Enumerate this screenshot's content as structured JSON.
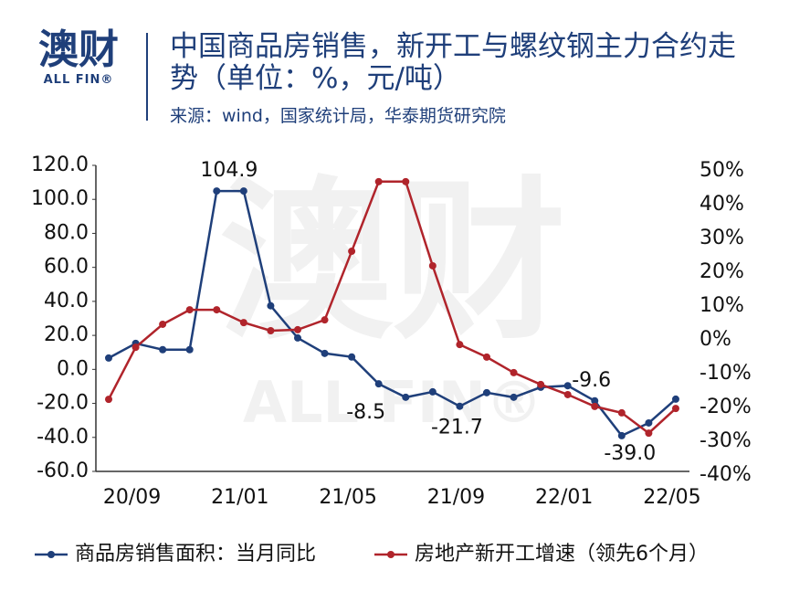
{
  "logo": {
    "name": "澳财",
    "sub": "ALL FIN®"
  },
  "header": {
    "title": "中国商品房销售，新开工与螺纹钢主力合约走势（单位：%，元/吨）",
    "source": "来源：wind，国家统计局，华泰期货研究院"
  },
  "chart_data": {
    "type": "line",
    "categories": [
      null,
      "20/09",
      null,
      null,
      null,
      "21/01",
      null,
      null,
      null,
      "21/05",
      null,
      null,
      null,
      "21/09",
      null,
      null,
      null,
      "22/01",
      null,
      null,
      null,
      "22/05"
    ],
    "series": [
      {
        "name": "商品房销售面积：当月同比",
        "color": "#1f3f7a",
        "values": [
          6.7,
          15.3,
          11.6,
          11.6,
          104.9,
          104.9,
          37.4,
          18.5,
          9.4,
          7.3,
          -8.5,
          -16.4,
          -13.2,
          -21.7,
          -13.7,
          -16.4,
          -10.5,
          -9.6,
          -18.5,
          -39.0,
          -31.5,
          -17.5
        ],
        "value_labels": [
          null,
          null,
          null,
          null,
          null,
          "104.9",
          null,
          null,
          null,
          null,
          "-8.5",
          null,
          null,
          "-21.7",
          null,
          null,
          null,
          "-9.6",
          null,
          "-39.0",
          null,
          null
        ]
      },
      {
        "name": "房地产新开工增速（领先6个月）",
        "color": "#b0242b",
        "axis": "y2",
        "values": [
          -17.6,
          -2.2,
          4.6,
          8.9,
          8.9,
          5.1,
          2.7,
          3.0,
          5.9,
          26.2,
          46.8,
          46.8,
          21.9,
          -1.4,
          -5.1,
          -9.7,
          -13.2,
          -16.2,
          -19.7,
          -21.6,
          -27.6,
          -20.3
        ]
      }
    ],
    "ylim": [
      -60,
      120
    ],
    "yticks": [
      {
        "value": -60,
        "label": "-60.0"
      },
      {
        "value": -40,
        "label": "-40.0"
      },
      {
        "value": -20,
        "label": "-20.0"
      },
      {
        "value": 0,
        "label": "0.0"
      },
      {
        "value": 20,
        "label": "20.0"
      },
      {
        "value": 40,
        "label": "40.0"
      },
      {
        "value": 60,
        "label": "60.0"
      },
      {
        "value": 80,
        "label": "80.0"
      },
      {
        "value": 100,
        "label": "100.0"
      },
      {
        "value": 120,
        "label": "120.0"
      }
    ],
    "y2lim": [
      -40,
      50
    ],
    "y2ticks": [
      {
        "value": -40,
        "label": "-40%"
      },
      {
        "value": -30,
        "label": "-30%"
      },
      {
        "value": -20,
        "label": "-20%"
      },
      {
        "value": -10,
        "label": "-10%"
      },
      {
        "value": 0,
        "label": "0%"
      },
      {
        "value": 10,
        "label": "10%"
      },
      {
        "value": 20,
        "label": "20%"
      },
      {
        "value": 30,
        "label": "30%"
      },
      {
        "value": 40,
        "label": "40%"
      },
      {
        "value": 50,
        "label": "50%"
      }
    ],
    "grid": false,
    "legend": "bottom"
  }
}
